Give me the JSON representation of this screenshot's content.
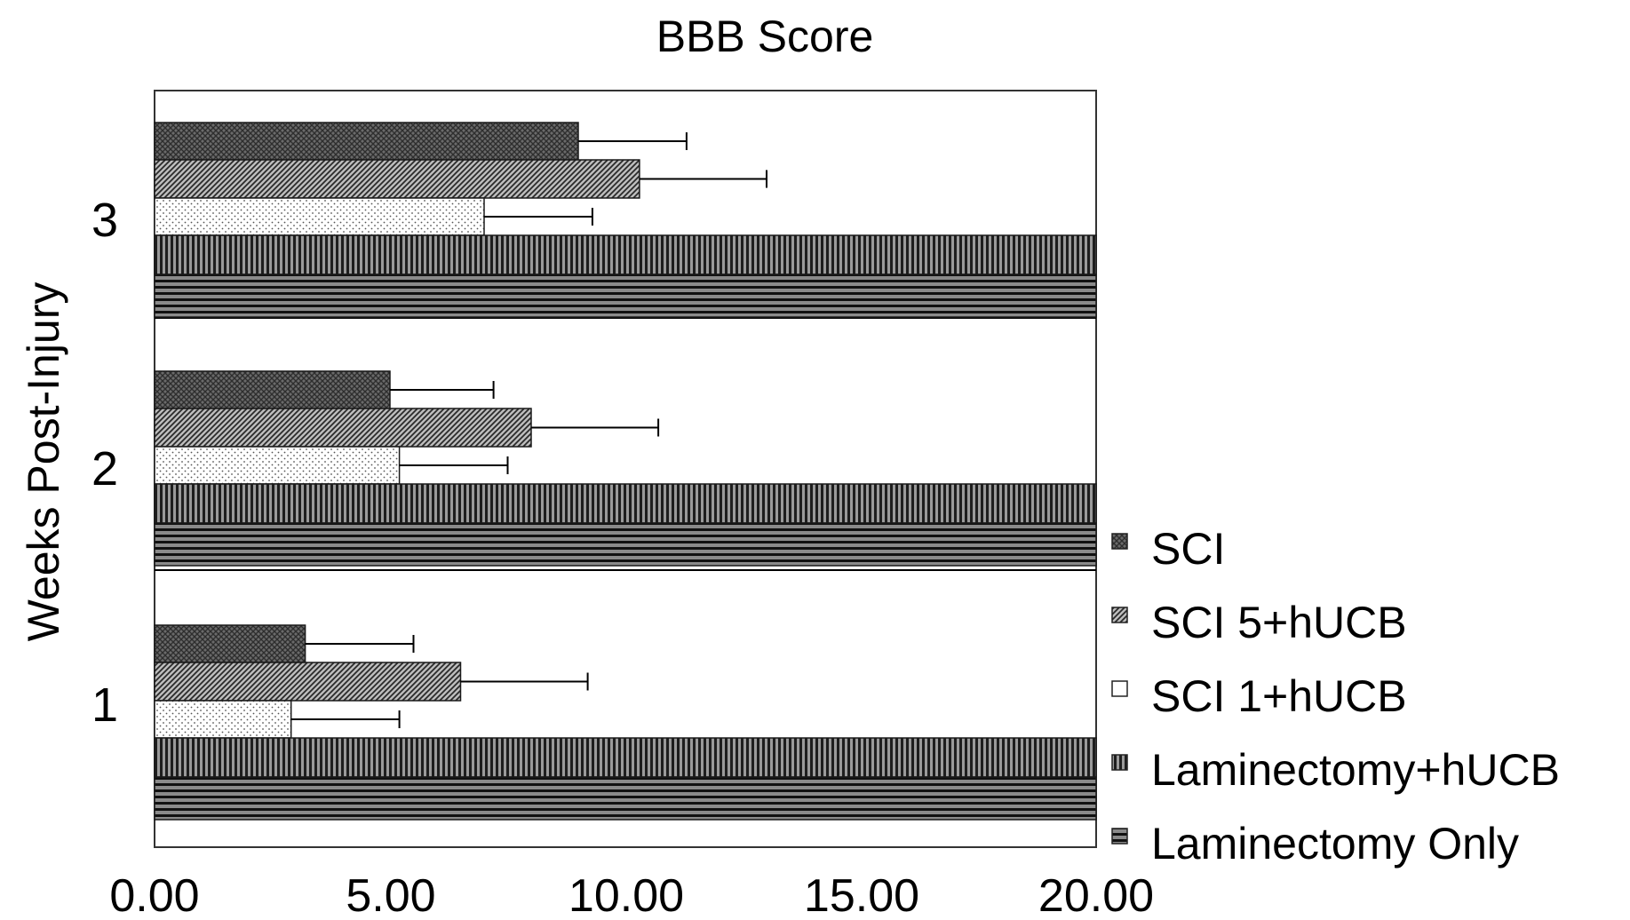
{
  "chart_data": {
    "type": "bar",
    "orientation": "horizontal",
    "title": "BBB Score",
    "xlabel": "",
    "ylabel": "Weeks Post-Injury",
    "xlim": [
      0,
      20
    ],
    "x_ticks": [
      "0.00",
      "5.00",
      "10.00",
      "15.00",
      "20.00"
    ],
    "x_tick_values": [
      0,
      5,
      10,
      15,
      20
    ],
    "categories": [
      "1",
      "2",
      "3"
    ],
    "grid": false,
    "legend_position": "right",
    "series": [
      {
        "name": "SCI",
        "values": [
          3.2,
          5.0,
          9.0
        ],
        "errors": [
          2.3,
          2.2,
          2.3
        ],
        "pattern": "crosshatch"
      },
      {
        "name": "SCI 5+hUCB",
        "values": [
          6.5,
          8.0,
          10.3
        ],
        "errors": [
          2.7,
          2.7,
          2.7
        ],
        "pattern": "diagonal"
      },
      {
        "name": "SCI 1+hUCB",
        "values": [
          2.9,
          5.2,
          7.0
        ],
        "errors": [
          2.3,
          2.3,
          2.3
        ],
        "pattern": "dots"
      },
      {
        "name": "Laminectomy+hUCB",
        "values": [
          21.0,
          21.0,
          21.0
        ],
        "errors": [
          0,
          0,
          0
        ],
        "pattern": "vertical"
      },
      {
        "name": "Laminectomy Only",
        "values": [
          21.0,
          21.0,
          21.0
        ],
        "errors": [
          0,
          0,
          0
        ],
        "pattern": "horizontal"
      }
    ]
  }
}
